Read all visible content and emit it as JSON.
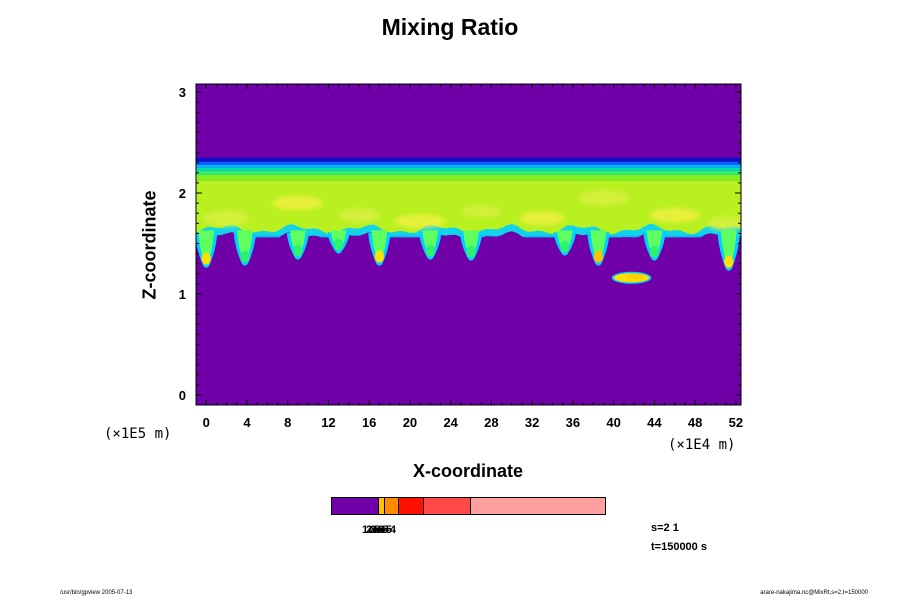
{
  "chart_data": {
    "type": "heatmap",
    "title": "Mixing Ratio",
    "xlabel": "X-coordinate",
    "ylabel": "Z-coordinate",
    "x_exponent": "(×1E4 m)",
    "y_exponent": "(×1E5 m)",
    "x_ticks": [
      0,
      4,
      8,
      12,
      16,
      20,
      24,
      28,
      32,
      36,
      40,
      44,
      48,
      52
    ],
    "y_ticks": [
      0,
      1,
      2,
      3
    ],
    "xlim": [
      -1,
      52.5
    ],
    "ylim": [
      -0.1,
      3.08
    ],
    "levels": {
      "background": "#7000a8",
      "cloud_top_band": [
        "#1010c8",
        "#0060ff",
        "#00b4ff",
        "#00e0b0",
        "#30f070",
        "#80f020",
        "#b8f020"
      ],
      "cloud_core": [
        "#d8f040",
        "#f0f040",
        "#ffd000"
      ],
      "cloud_base_edge": [
        "#00d0ff",
        "#60ff60",
        "#ffe000"
      ]
    },
    "colorbar": {
      "labels": [
        "1e-6",
        "2e-5",
        "3e-5",
        "5e-4"
      ],
      "colors": [
        "#7000a8",
        "#ffc000",
        "#ff8c00",
        "#ff1000",
        "#ff4a48",
        "#ffa0a0"
      ],
      "fractions": [
        0.17,
        0.02,
        0.05,
        0.09,
        0.17,
        0.5
      ]
    },
    "cloud_top_z": 2.35,
    "cloud_base_z": 1.58,
    "thermals": [
      {
        "x": 0.0,
        "z_bottom": 1.28,
        "color": "#ffe000"
      },
      {
        "x": 3.8,
        "z_bottom": 1.3,
        "color": "#30f070"
      },
      {
        "x": 9.0,
        "z_bottom": 1.36,
        "color": "#30f070"
      },
      {
        "x": 13.0,
        "z_bottom": 1.42,
        "color": "#30f070"
      },
      {
        "x": 17.0,
        "z_bottom": 1.3,
        "color": "#ffe000"
      },
      {
        "x": 22.0,
        "z_bottom": 1.36,
        "color": "#30f070"
      },
      {
        "x": 26.0,
        "z_bottom": 1.35,
        "color": "#30f070"
      },
      {
        "x": 35.2,
        "z_bottom": 1.4,
        "color": "#30f070"
      },
      {
        "x": 38.5,
        "z_bottom": 1.3,
        "color": "#ffc000"
      },
      {
        "x": 44.0,
        "z_bottom": 1.35,
        "color": "#30f070"
      },
      {
        "x": 51.3,
        "z_bottom": 1.25,
        "color": "#ffe000"
      }
    ],
    "detached_cloud": {
      "x_start": 40.0,
      "x_end": 43.5,
      "z_center": 1.16
    }
  },
  "info": {
    "s": "s=2 1",
    "t": "t=150000 s"
  },
  "footer": {
    "left": "/usr/bin/gpview 2005-07-13",
    "right": "arare-nakajima.nc@MixRt,s=2,t=150000"
  }
}
